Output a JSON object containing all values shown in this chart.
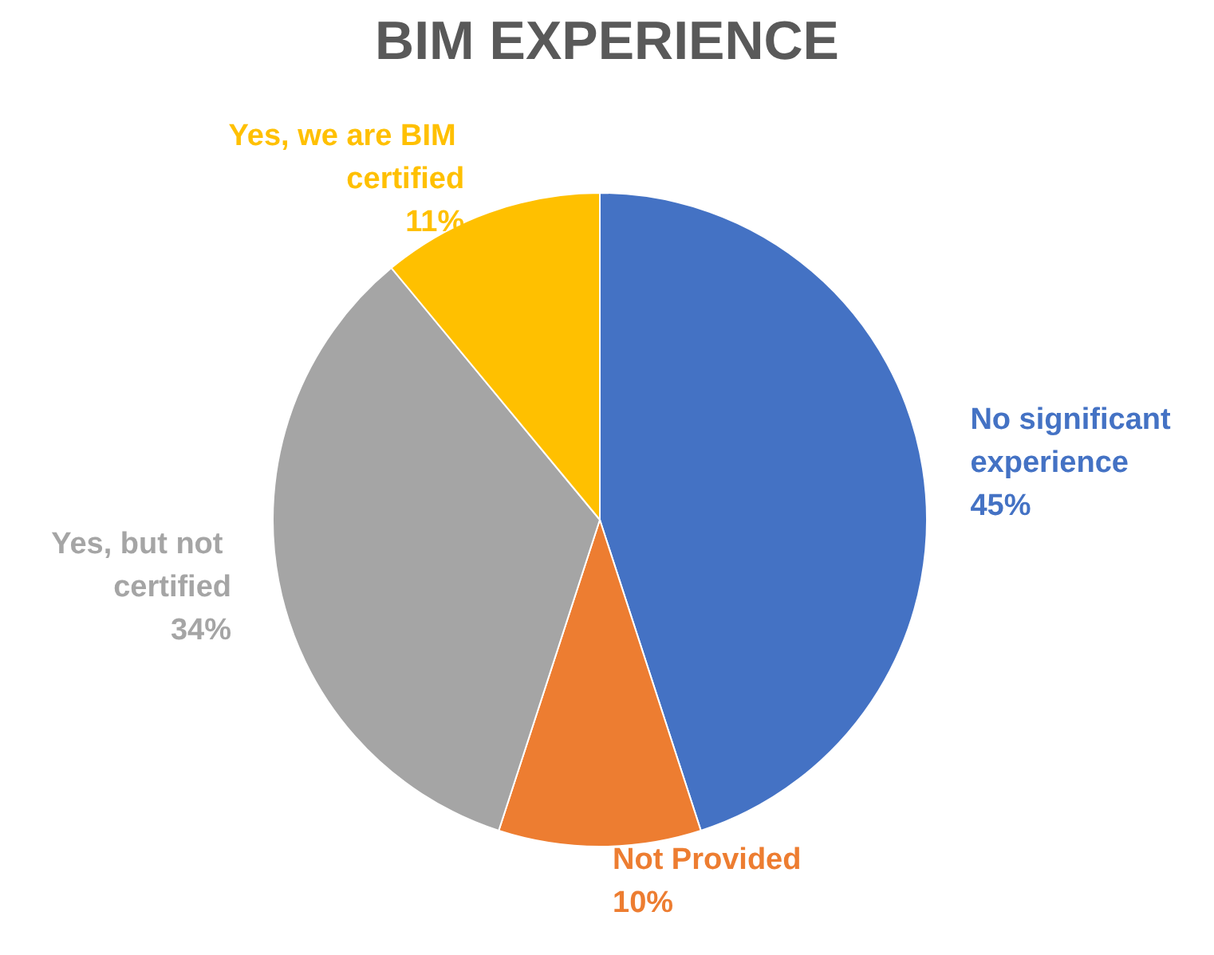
{
  "chart_data": {
    "type": "pie",
    "title": "BIM EXPERIENCE",
    "categories": [
      "No significant experience",
      "Not Provided",
      "Yes, but not certified",
      "Yes, we are BIM certified"
    ],
    "values": [
      45,
      10,
      34,
      11
    ],
    "value_labels": [
      "45%",
      "10%",
      "34%",
      "11%"
    ],
    "colors": [
      "#4472c4",
      "#ed7d31",
      "#a5a5a5",
      "#ffc000"
    ]
  }
}
